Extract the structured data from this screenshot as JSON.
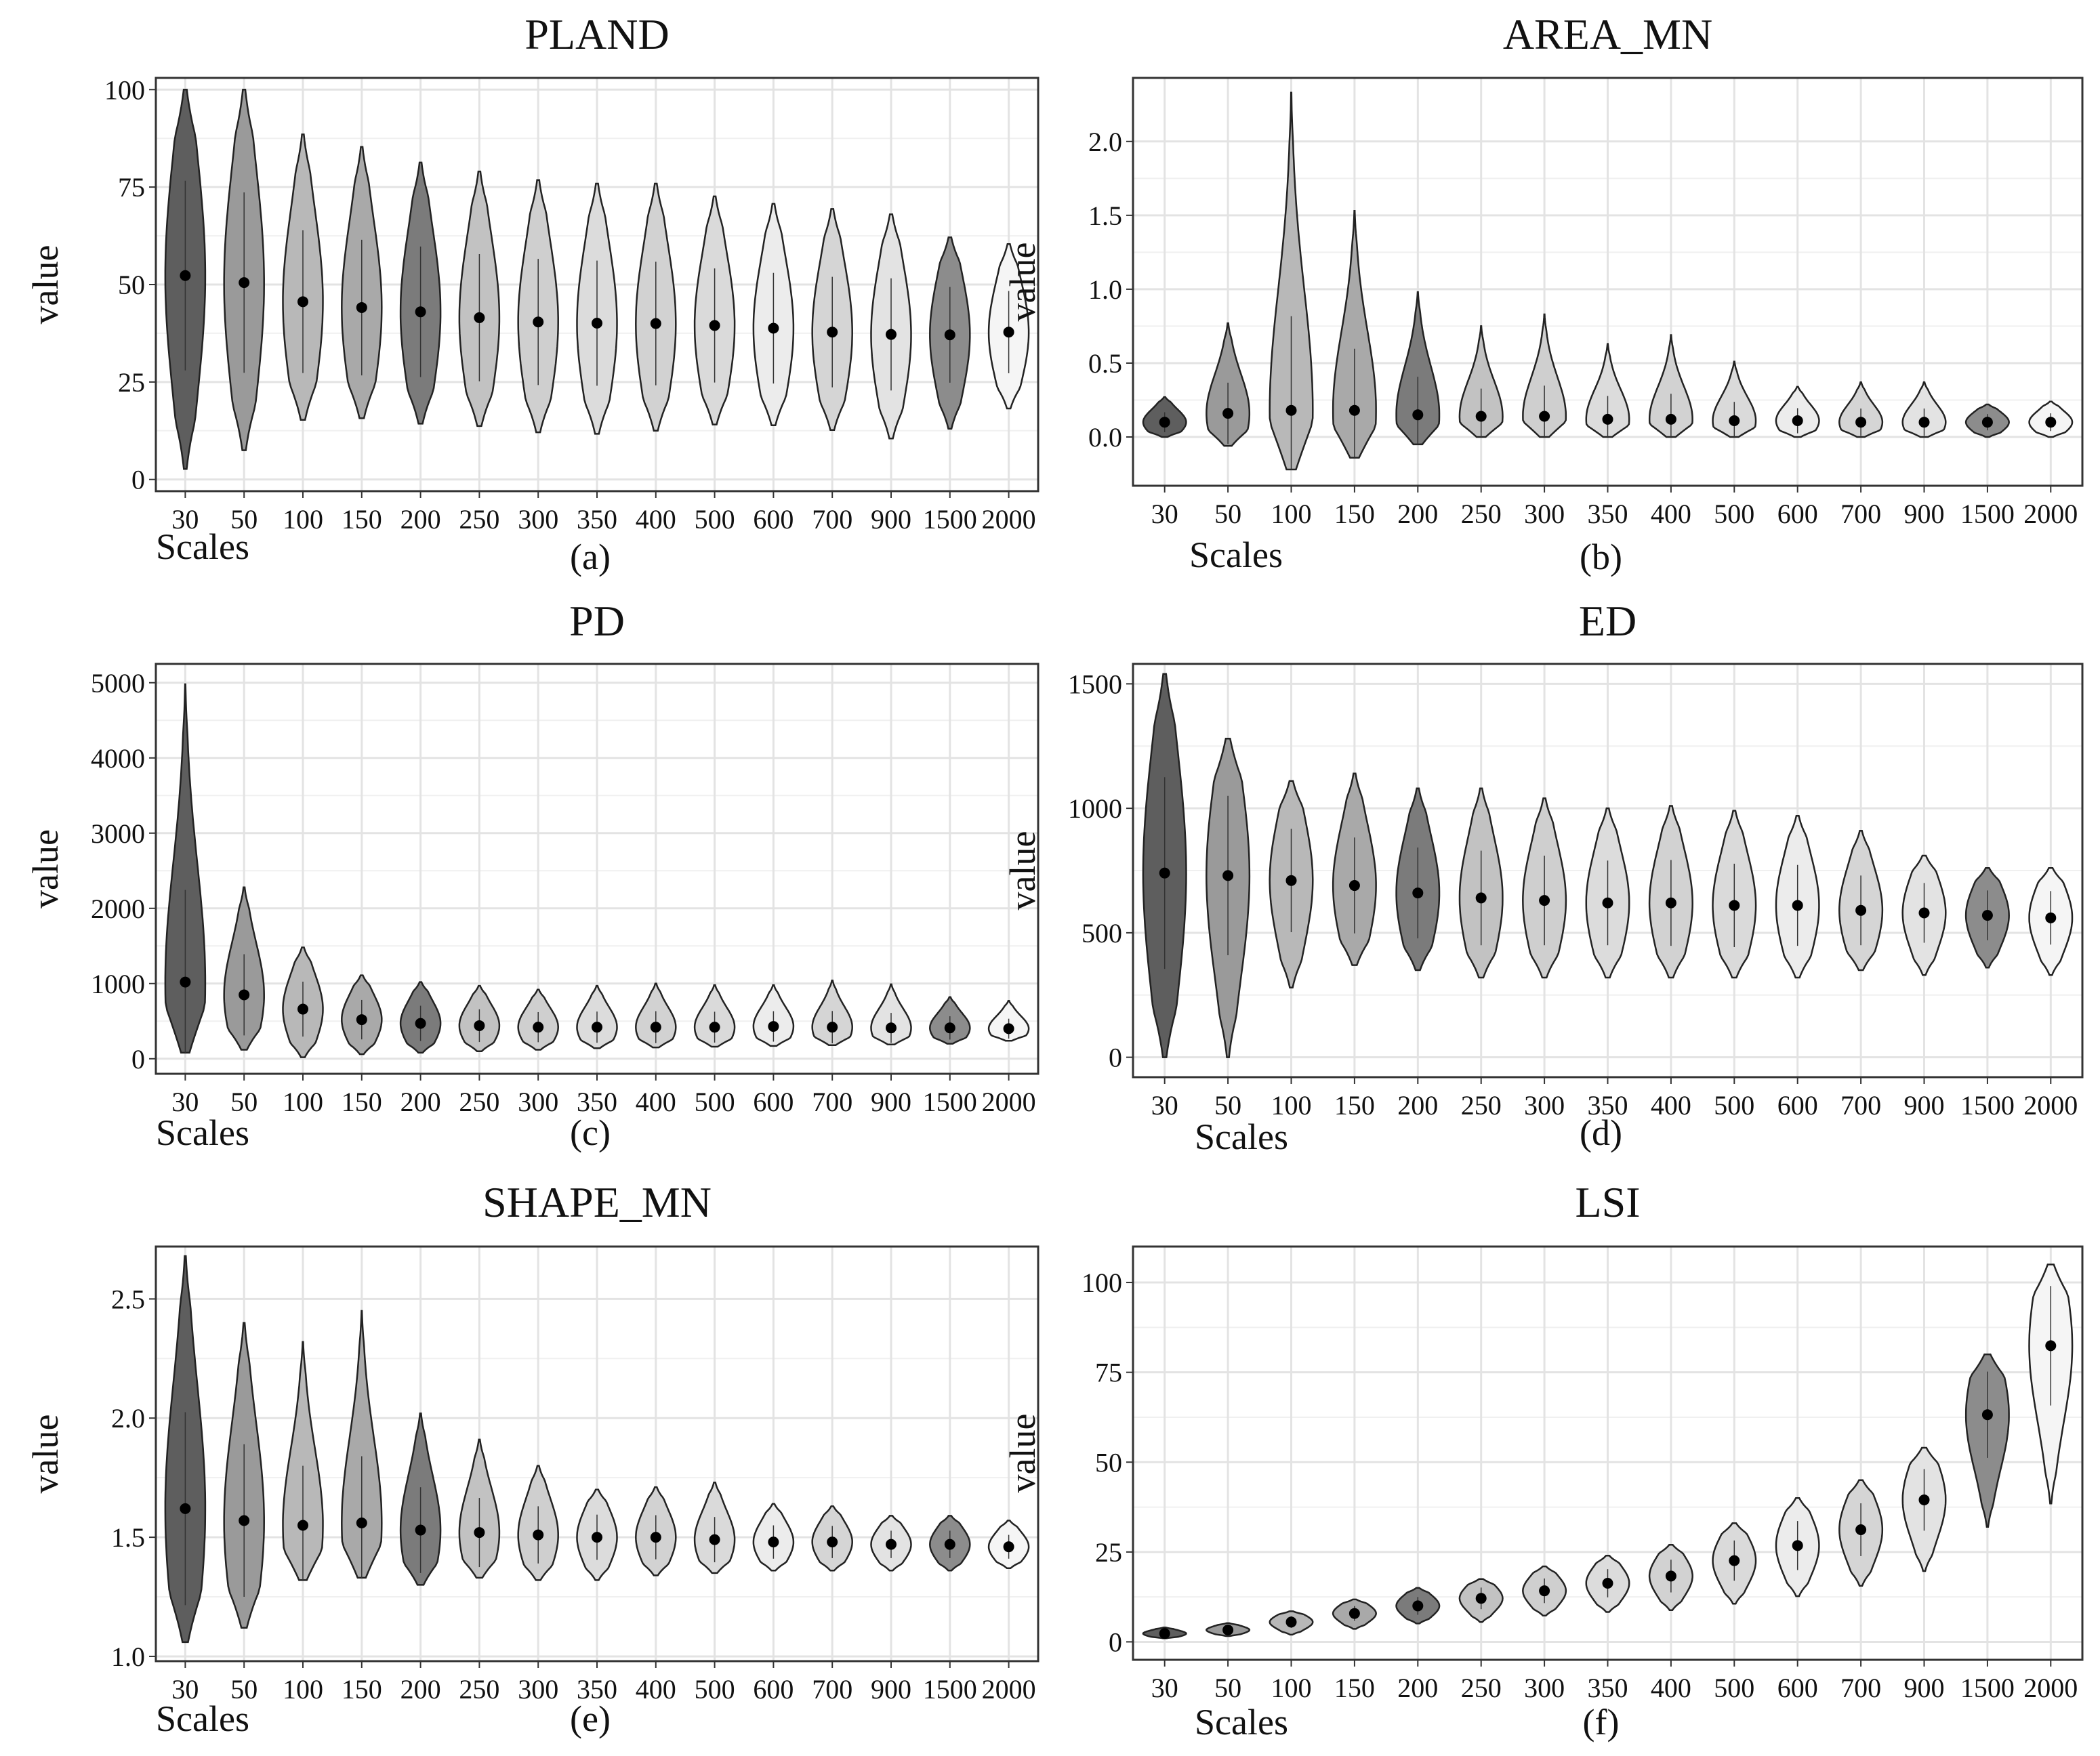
{
  "figure": {
    "x_categories": [
      "30",
      "50",
      "100",
      "150",
      "200",
      "250",
      "300",
      "350",
      "400",
      "500",
      "600",
      "700",
      "900",
      "1500",
      "2000"
    ],
    "panels": [
      {
        "id": "a",
        "title": "PLAND",
        "xlabel": "Scales",
        "ylabel": "value",
        "sublabel": "(a)",
        "ylim": [
          -3,
          103
        ],
        "yticks": [
          0,
          25,
          50,
          75,
          100
        ],
        "ytick_labels": [
          "0",
          "25",
          "50",
          "75",
          "100"
        ],
        "chart_data": {
          "type": "violin",
          "means": [
            52.3,
            50.5,
            45.6,
            44.1,
            43.0,
            41.5,
            40.4,
            40.1,
            40.0,
            39.5,
            38.8,
            37.8,
            37.2,
            37.1,
            37.8
          ],
          "maxs": [
            100,
            100,
            88.5,
            85.3,
            81.3,
            79.0,
            76.8,
            75.9,
            75.9,
            72.6,
            70.7,
            69.4,
            68.0,
            62.1,
            60.4
          ],
          "mins": [
            2.7,
            7.5,
            15.3,
            15.7,
            14.3,
            13.7,
            12.1,
            11.7,
            12.5,
            14.1,
            13.9,
            12.7,
            10.5,
            13.0,
            18.2
          ],
          "fills": [
            "#5e5e5e",
            "#9a9a9a",
            "#b8b8b8",
            "#a9a9a9",
            "#7b7b7b",
            "#c2c2c2",
            "#cfcfcf",
            "#dcdcdc",
            "#d2d2d2",
            "#dadada",
            "#ececec",
            "#d5d5d5",
            "#e3e3e3",
            "#8c8c8c",
            "#f5f5f5"
          ]
        }
      },
      {
        "id": "b",
        "title": "AREA_MN",
        "xlabel": "Scales",
        "ylabel": "value",
        "sublabel": "(b)",
        "ylim": [
          -0.33,
          2.43
        ],
        "yticks": [
          0,
          0.5,
          1,
          1.5,
          2
        ],
        "ytick_labels": [
          "0.0",
          "0.5",
          "1.0",
          "1.5",
          "2.0"
        ],
        "chart_data": {
          "type": "violin",
          "means": [
            0.1,
            0.16,
            0.18,
            0.18,
            0.15,
            0.14,
            0.14,
            0.12,
            0.12,
            0.11,
            0.11,
            0.1,
            0.1,
            0.1,
            0.1
          ],
          "maxs": [
            0.27,
            0.77,
            2.33,
            1.53,
            0.98,
            0.75,
            0.83,
            0.63,
            0.69,
            0.51,
            0.34,
            0.37,
            0.37,
            0.22,
            0.24
          ],
          "mins": [
            0.0,
            -0.06,
            -0.22,
            -0.14,
            -0.05,
            0.0,
            0.0,
            0.0,
            0.0,
            0.0,
            0.0,
            0.0,
            0.0,
            0.0,
            0.0
          ],
          "fills": [
            "#5e5e5e",
            "#9a9a9a",
            "#b8b8b8",
            "#a9a9a9",
            "#7b7b7b",
            "#c2c2c2",
            "#cfcfcf",
            "#dcdcdc",
            "#d2d2d2",
            "#dadada",
            "#ececec",
            "#d5d5d5",
            "#e3e3e3",
            "#8c8c8c",
            "#f5f5f5"
          ]
        }
      },
      {
        "id": "c",
        "title": "PD",
        "xlabel": "Scales",
        "ylabel": "value",
        "sublabel": "(c)",
        "ylim": [
          -200,
          5250
        ],
        "yticks": [
          0,
          1000,
          2000,
          3000,
          4000,
          5000
        ],
        "ytick_labels": [
          "0",
          "1000",
          "2000",
          "3000",
          "4000",
          "5000"
        ],
        "chart_data": {
          "type": "violin",
          "means": [
            1020,
            850,
            660,
            520,
            470,
            440,
            420,
            420,
            420,
            420,
            430,
            420,
            410,
            410,
            400
          ],
          "maxs": [
            4980,
            2280,
            1480,
            1110,
            1020,
            970,
            920,
            970,
            1000,
            980,
            980,
            1040,
            990,
            820,
            770
          ],
          "mins": [
            80,
            120,
            20,
            60,
            80,
            100,
            120,
            140,
            150,
            160,
            170,
            180,
            190,
            200,
            240
          ],
          "fills": [
            "#5e5e5e",
            "#9a9a9a",
            "#b8b8b8",
            "#a9a9a9",
            "#7b7b7b",
            "#c2c2c2",
            "#cfcfcf",
            "#dcdcdc",
            "#d2d2d2",
            "#dadada",
            "#ececec",
            "#d5d5d5",
            "#e3e3e3",
            "#8c8c8c",
            "#f5f5f5"
          ]
        }
      },
      {
        "id": "d",
        "title": "ED",
        "xlabel": "Scales",
        "ylabel": "value",
        "sublabel": "(d)",
        "ylim": [
          -80,
          1580
        ],
        "yticks": [
          0,
          500,
          1000,
          1500
        ],
        "ytick_labels": [
          "0",
          "500",
          "1000",
          "1500"
        ],
        "chart_data": {
          "type": "violin",
          "means": [
            740,
            730,
            710,
            690,
            660,
            640,
            630,
            620,
            620,
            610,
            610,
            590,
            580,
            570,
            560
          ],
          "maxs": [
            1540,
            1280,
            1110,
            1140,
            1080,
            1080,
            1040,
            1000,
            1010,
            990,
            970,
            910,
            810,
            760,
            760
          ],
          "mins": [
            0,
            0,
            280,
            370,
            350,
            320,
            320,
            320,
            320,
            320,
            320,
            350,
            330,
            360,
            330
          ],
          "fills": [
            "#5e5e5e",
            "#9a9a9a",
            "#b8b8b8",
            "#a9a9a9",
            "#7b7b7b",
            "#c2c2c2",
            "#cfcfcf",
            "#dcdcdc",
            "#d2d2d2",
            "#dadada",
            "#ececec",
            "#d5d5d5",
            "#e3e3e3",
            "#8c8c8c",
            "#f5f5f5"
          ]
        }
      },
      {
        "id": "e",
        "title": "SHAPE_MN",
        "xlabel": "Scales",
        "ylabel": "value",
        "sublabel": "(e)",
        "ylim": [
          0.98,
          2.72
        ],
        "yticks": [
          1,
          1.5,
          2,
          2.5
        ],
        "ytick_labels": [
          "1.0",
          "1.5",
          "2.0",
          "2.5"
        ],
        "chart_data": {
          "type": "violin",
          "means": [
            1.62,
            1.57,
            1.55,
            1.56,
            1.53,
            1.52,
            1.51,
            1.5,
            1.5,
            1.49,
            1.48,
            1.48,
            1.47,
            1.47,
            1.46
          ],
          "maxs": [
            2.68,
            2.4,
            2.32,
            2.45,
            2.02,
            1.91,
            1.8,
            1.7,
            1.71,
            1.73,
            1.64,
            1.63,
            1.59,
            1.59,
            1.57
          ],
          "mins": [
            1.06,
            1.12,
            1.32,
            1.33,
            1.3,
            1.33,
            1.32,
            1.32,
            1.34,
            1.35,
            1.36,
            1.36,
            1.36,
            1.36,
            1.37
          ],
          "fills": [
            "#5e5e5e",
            "#9a9a9a",
            "#b8b8b8",
            "#a9a9a9",
            "#7b7b7b",
            "#c2c2c2",
            "#cfcfcf",
            "#dcdcdc",
            "#d2d2d2",
            "#dadada",
            "#ececec",
            "#d5d5d5",
            "#e3e3e3",
            "#8c8c8c",
            "#f5f5f5"
          ]
        }
      },
      {
        "id": "f",
        "title": "LSI",
        "xlabel": "Scales",
        "ylabel": "value",
        "sublabel": "(f)",
        "ylim": [
          -5,
          110
        ],
        "yticks": [
          0,
          25,
          50,
          75,
          100
        ],
        "ytick_labels": [
          "0",
          "25",
          "50",
          "75",
          "100"
        ],
        "chart_data": {
          "type": "violin",
          "means": [
            2.3,
            3.3,
            5.5,
            7.9,
            10.0,
            12.1,
            14.2,
            16.3,
            18.3,
            22.6,
            26.8,
            31.2,
            39.5,
            63.2,
            82.4
          ],
          "maxs": [
            4.0,
            5.2,
            8.5,
            11.8,
            15.0,
            17.5,
            21.0,
            24.0,
            27.0,
            33.0,
            40.0,
            45.0,
            54.0,
            80.0,
            105.0
          ],
          "mins": [
            1.0,
            1.6,
            2.0,
            3.6,
            5.1,
            5.5,
            7.3,
            8.3,
            8.8,
            10.6,
            12.7,
            15.6,
            19.7,
            32.0,
            38.5
          ],
          "fills": [
            "#5e5e5e",
            "#9a9a9a",
            "#b8b8b8",
            "#a9a9a9",
            "#7b7b7b",
            "#c2c2c2",
            "#cfcfcf",
            "#dcdcdc",
            "#d2d2d2",
            "#dadada",
            "#ececec",
            "#d5d5d5",
            "#e3e3e3",
            "#8c8c8c",
            "#f5f5f5"
          ]
        }
      }
    ]
  }
}
